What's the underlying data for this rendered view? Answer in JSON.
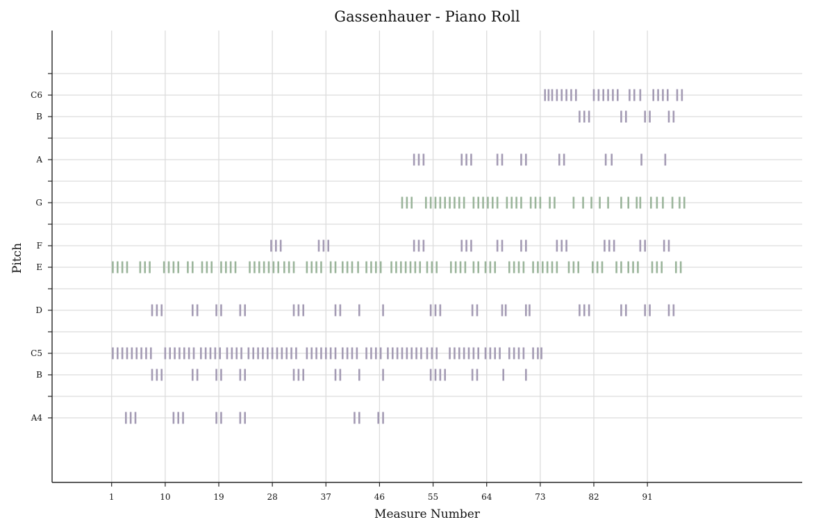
{
  "chart_data": {
    "type": "piano-roll",
    "title": "Gassenhauer - Piano Roll",
    "xlabel": "Measure Number",
    "ylabel": "Pitch",
    "xlim": [
      -9,
      117
    ],
    "x_ticks": [
      1,
      10,
      19,
      28,
      37,
      46,
      55,
      64,
      73,
      82,
      91
    ],
    "ylim": [
      66,
      87
    ],
    "y_ticks": [
      69,
      70,
      71,
      72,
      73,
      74,
      75,
      76,
      77,
      78,
      79,
      80,
      81,
      82,
      83,
      84,
      85
    ],
    "y_tick_labels": {
      "69": "A4",
      "71": "B",
      "72": "C5",
      "74": "D",
      "76": "E",
      "77": "F",
      "79": "G",
      "81": "A",
      "83": "B",
      "84": "C6"
    },
    "grid": true,
    "colors": {
      "default": "#a39ab3",
      "highlight": "#9ab49a",
      "grid": "#dcdcdc",
      "axis": "#222222"
    },
    "series": [
      {
        "color": "highlight",
        "notes": [
          {
            "pitch": 76,
            "x": [
              1.2,
              2,
              2.8,
              3.6,
              5.8,
              6.6,
              7.4,
              9.8,
              10.6,
              11.4,
              12.2,
              13.8,
              14.6,
              16.2,
              17,
              17.8,
              19.4,
              20.2,
              21,
              21.8,
              24.2,
              25,
              25.8,
              26.6,
              27.4,
              28.2,
              29,
              30,
              30.8,
              31.6,
              33.8,
              34.6,
              35.4,
              36.2,
              37.8,
              38.6,
              39.8,
              40.6,
              41.4,
              42.4,
              43.8,
              44.6,
              45.4,
              46.2,
              48,
              48.8,
              49.6,
              50.4,
              51.2,
              52,
              52.8,
              54,
              54.8,
              55.6,
              58,
              58.8,
              59.6,
              60.4,
              61.8,
              62.6,
              63.8,
              64.6,
              65.4,
              67.8,
              68.6,
              69.4,
              70.2,
              71.8,
              72.6,
              73.4,
              74.2,
              75,
              75.8,
              77.8,
              78.6,
              79.4,
              81.8,
              82.6,
              83.4,
              85.8,
              86.6,
              87.8,
              88.6,
              89.4,
              91.8,
              92.6,
              93.4,
              95.8,
              96.6
            ]
          },
          {
            "pitch": 79,
            "x": [
              49.8,
              50.6,
              51.4,
              53.8,
              54.6,
              55.4,
              56.2,
              57,
              57.8,
              58.6,
              59.4,
              60.2,
              61.8,
              62.6,
              63.4,
              64.2,
              65,
              65.8,
              67.4,
              68.2,
              69,
              69.8,
              71.4,
              72.2,
              73,
              74.6,
              75.4,
              78.6,
              80.2,
              81.6,
              83,
              84.4,
              86.6,
              87.8,
              89.2,
              89.8,
              91.6,
              92.6,
              93.6,
              95.2,
              96.4,
              97.2
            ]
          }
        ]
      },
      {
        "color": "default",
        "notes": [
          {
            "pitch": 69,
            "x": [
              3.4,
              4.2,
              5,
              11.4,
              12.2,
              13,
              18.6,
              19.4,
              22.6,
              23.4,
              41.8,
              42.6,
              45.8,
              46.6
            ]
          },
          {
            "pitch": 71,
            "x": [
              7.8,
              8.6,
              9.4,
              14.6,
              15.4,
              18.6,
              19.4,
              22.6,
              23.4,
              31.6,
              32.4,
              33.2,
              38.6,
              39.4,
              42.6,
              46.6,
              54.6,
              55.4,
              56.2,
              57,
              61.6,
              62.4,
              66.8,
              70.6
            ]
          },
          {
            "pitch": 72,
            "x": [
              1.2,
              2,
              2.8,
              3.6,
              4.4,
              5.2,
              6,
              6.8,
              7.6,
              10,
              10.8,
              11.6,
              12.4,
              13.2,
              14,
              14.8,
              16,
              16.8,
              17.6,
              18.4,
              19.2,
              20.4,
              21.2,
              22,
              22.8,
              24,
              24.8,
              25.6,
              26.4,
              27.2,
              28,
              28.8,
              29.6,
              30.4,
              31.2,
              32,
              33.8,
              34.6,
              35.4,
              36.2,
              37,
              37.8,
              38.6,
              39.8,
              40.6,
              41.4,
              42.2,
              43.8,
              44.6,
              45.4,
              46.2,
              47.4,
              48.2,
              49,
              49.8,
              50.6,
              51.4,
              52.2,
              53,
              54,
              54.8,
              55.6,
              57.8,
              58.6,
              59.4,
              60.2,
              61,
              61.8,
              62.6,
              63.8,
              64.6,
              65.4,
              66.2,
              67.8,
              68.6,
              69.4,
              70.2,
              71.8,
              72.6,
              73.2
            ]
          },
          {
            "pitch": 74,
            "x": [
              7.8,
              8.6,
              9.4,
              14.6,
              15.4,
              18.6,
              19.4,
              22.6,
              23.4,
              31.6,
              32.4,
              33.2,
              38.6,
              39.4,
              42.6,
              46.6,
              54.6,
              55.4,
              56.2,
              61.6,
              62.4,
              66.6,
              67.2,
              70.6,
              71.2,
              79.6,
              80.4,
              81.2,
              86.6,
              87.4,
              90.6,
              91.4,
              94.6,
              95.4
            ]
          },
          {
            "pitch": 77,
            "x": [
              27.8,
              28.6,
              29.4,
              35.8,
              36.6,
              37.4,
              51.8,
              52.6,
              53.4,
              59.8,
              60.6,
              61.4,
              65.8,
              66.6,
              69.8,
              70.6,
              75.8,
              76.6,
              77.4,
              83.8,
              84.6,
              85.4,
              89.8,
              90.6,
              93.8,
              94.6
            ]
          },
          {
            "pitch": 81,
            "x": [
              51.8,
              52.6,
              53.4,
              59.8,
              60.6,
              61.4,
              65.8,
              66.6,
              69.8,
              70.6,
              76.2,
              77,
              84,
              85,
              90,
              94
            ]
          },
          {
            "pitch": 83,
            "x": [
              79.6,
              80.4,
              81.2,
              86.6,
              87.4,
              90.6,
              91.4,
              94.6,
              95.4
            ]
          },
          {
            "pitch": 84,
            "x": [
              73.8,
              74.4,
              75,
              75.8,
              76.6,
              77.4,
              78.2,
              79,
              82,
              82.8,
              83.6,
              84.4,
              85.2,
              86,
              88,
              88.8,
              89.8,
              92,
              92.8,
              93.6,
              94.4,
              96,
              96.8
            ]
          }
        ]
      }
    ]
  }
}
